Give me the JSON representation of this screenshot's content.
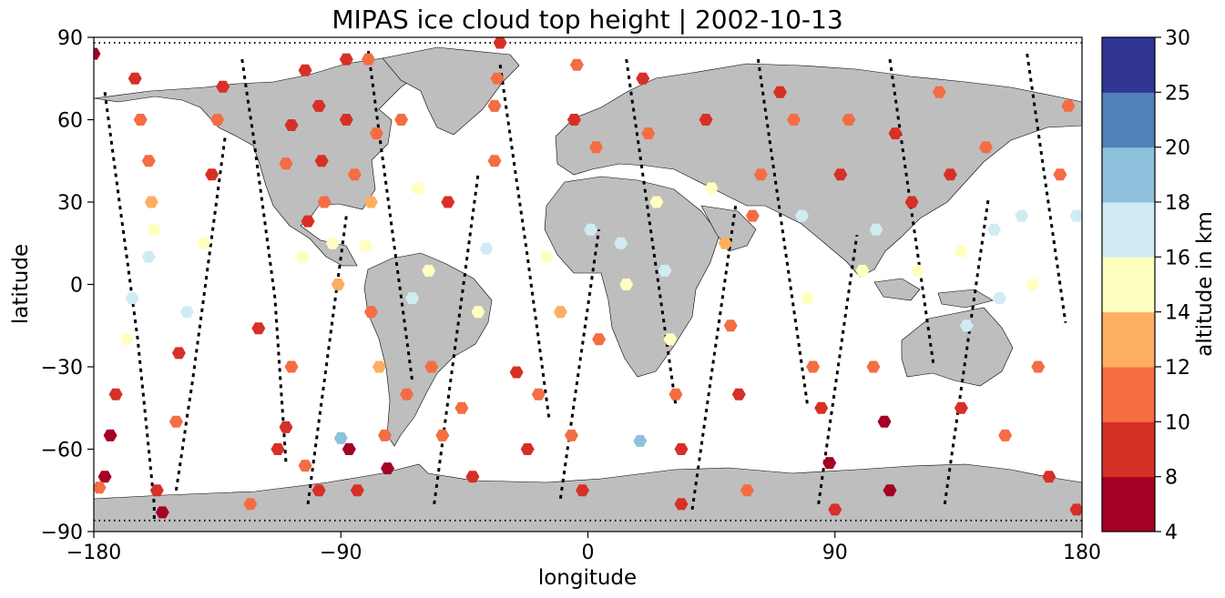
{
  "chart_data": {
    "type": "scatter",
    "title": "MIPAS ice cloud top height | 2002-10-13",
    "xlabel": "longitude",
    "ylabel": "latitude",
    "xlim": [
      -180,
      180
    ],
    "ylim": [
      -90,
      90
    ],
    "xticks": [
      "−180",
      "−90",
      "0",
      "90",
      "180"
    ],
    "yticks": [
      "90",
      "60",
      "30",
      "0",
      "−30",
      "−60",
      "−90"
    ],
    "xtick_values": [
      -180,
      -90,
      0,
      90,
      180
    ],
    "ytick_values": [
      90,
      60,
      30,
      0,
      -30,
      -60,
      -90
    ],
    "colorbar": {
      "label": "altitude in km",
      "bounds": [
        4,
        8,
        10,
        12,
        14,
        16,
        18,
        20,
        25,
        30
      ],
      "tick_labels": [
        "4",
        "8",
        "10",
        "12",
        "14",
        "16",
        "18",
        "20",
        "25",
        "30"
      ],
      "colors": [
        "#a50026",
        "#d73027",
        "#f46d43",
        "#fdae61",
        "#ffffbf",
        "#d1ebf3",
        "#8ec1dc",
        "#4f82b8",
        "#313695"
      ]
    },
    "land_color": "#bebebe",
    "orbit_tracks": [
      {
        "lon": [
          -176,
          -174,
          -172,
          -170,
          -168,
          -166,
          -164,
          -163,
          -162,
          -161,
          -160,
          -159,
          -158,
          -158
        ],
        "lat": [
          70,
          55,
          40,
          25,
          10,
          -5,
          -20,
          -30,
          -40,
          -50,
          -60,
          -70,
          -80,
          -86
        ]
      },
      {
        "lon": [
          -150,
          -148,
          -146,
          -144,
          -142,
          -140,
          -138,
          -136,
          -134,
          -132
        ],
        "lat": [
          -75,
          -62,
          -48,
          -35,
          -20,
          -5,
          10,
          25,
          40,
          55
        ]
      },
      {
        "lon": [
          -126,
          -124,
          -122,
          -120,
          -118,
          -116,
          -114,
          -113,
          -112,
          -111,
          -110
        ],
        "lat": [
          82,
          68,
          55,
          40,
          25,
          10,
          -5,
          -20,
          -35,
          -50,
          -65
        ]
      },
      {
        "lon": [
          -102,
          -100,
          -98,
          -96,
          -94,
          -92,
          -90,
          -88
        ],
        "lat": [
          -80,
          -65,
          -50,
          -35,
          -20,
          -5,
          10,
          25
        ]
      },
      {
        "lon": [
          -80,
          -78,
          -76,
          -74,
          -72,
          -70,
          -68,
          -66,
          -64
        ],
        "lat": [
          85,
          70,
          55,
          40,
          25,
          10,
          -5,
          -20,
          -35
        ]
      },
      {
        "lon": [
          -56,
          -54,
          -52,
          -50,
          -48,
          -46,
          -44,
          -42,
          -40
        ],
        "lat": [
          -80,
          -65,
          -50,
          -35,
          -20,
          -5,
          10,
          25,
          40
        ]
      },
      {
        "lon": [
          -32,
          -30,
          -28,
          -26,
          -24,
          -22,
          -20,
          -18,
          -16,
          -14
        ],
        "lat": [
          80,
          66,
          52,
          38,
          24,
          10,
          -5,
          -20,
          -35,
          -50
        ]
      },
      {
        "lon": [
          -10,
          -8,
          -6,
          -4,
          -2,
          0,
          2,
          4
        ],
        "lat": [
          -78,
          -64,
          -50,
          -36,
          -22,
          -8,
          6,
          20
        ]
      },
      {
        "lon": [
          14,
          16,
          18,
          20,
          22,
          24,
          26,
          28,
          30,
          32
        ],
        "lat": [
          82,
          68,
          54,
          40,
          26,
          12,
          -2,
          -16,
          -30,
          -44
        ]
      },
      {
        "lon": [
          38,
          40,
          42,
          44,
          46,
          48,
          50,
          52,
          54
        ],
        "lat": [
          -82,
          -68,
          -54,
          -40,
          -26,
          -12,
          2,
          16,
          30
        ]
      },
      {
        "lon": [
          62,
          64,
          66,
          68,
          70,
          72,
          74,
          76,
          78,
          80
        ],
        "lat": [
          82,
          68,
          54,
          40,
          26,
          12,
          -2,
          -16,
          -30,
          -44
        ]
      },
      {
        "lon": [
          84,
          86,
          88,
          90,
          92,
          94,
          96,
          98
        ],
        "lat": [
          -80,
          -66,
          -52,
          -38,
          -24,
          -10,
          4,
          18
        ]
      },
      {
        "lon": [
          110,
          112,
          114,
          116,
          118,
          120,
          122,
          124,
          126
        ],
        "lat": [
          82,
          68,
          54,
          40,
          26,
          12,
          -2,
          -16,
          -30
        ]
      },
      {
        "lon": [
          130,
          132,
          134,
          136,
          138,
          140,
          142,
          144,
          146
        ],
        "lat": [
          -80,
          -66,
          -52,
          -38,
          -24,
          -10,
          4,
          18,
          32
        ]
      },
      {
        "lon": [
          160,
          162,
          164,
          166,
          168,
          170,
          172,
          174
        ],
        "lat": [
          84,
          70,
          56,
          42,
          28,
          14,
          0,
          -14
        ]
      }
    ],
    "cloud_points": [
      {
        "lon": -180,
        "lat": 84,
        "h": 6
      },
      {
        "lon": -165,
        "lat": 75,
        "h": 9
      },
      {
        "lon": -163,
        "lat": 60,
        "h": 11
      },
      {
        "lon": -160,
        "lat": 45,
        "h": 10
      },
      {
        "lon": -159,
        "lat": 30,
        "h": 12
      },
      {
        "lon": -158,
        "lat": 20,
        "h": 15
      },
      {
        "lon": -160,
        "lat": 10,
        "h": 16
      },
      {
        "lon": -166,
        "lat": -5,
        "h": 17
      },
      {
        "lon": -168,
        "lat": -20,
        "h": 15
      },
      {
        "lon": -172,
        "lat": -40,
        "h": 8
      },
      {
        "lon": -174,
        "lat": -55,
        "h": 6
      },
      {
        "lon": -176,
        "lat": -70,
        "h": 7
      },
      {
        "lon": -178,
        "lat": -74,
        "h": 11
      },
      {
        "lon": -157,
        "lat": -75,
        "h": 9
      },
      {
        "lon": -155,
        "lat": -83,
        "h": 6
      },
      {
        "lon": -150,
        "lat": -50,
        "h": 11
      },
      {
        "lon": -149,
        "lat": -25,
        "h": 9
      },
      {
        "lon": -146,
        "lat": -10,
        "h": 17
      },
      {
        "lon": -140,
        "lat": 15,
        "h": 14
      },
      {
        "lon": -137,
        "lat": 40,
        "h": 9
      },
      {
        "lon": -135,
        "lat": 60,
        "h": 10
      },
      {
        "lon": -133,
        "lat": 72,
        "h": 9
      },
      {
        "lon": -123,
        "lat": -80,
        "h": 10
      },
      {
        "lon": -120,
        "lat": -16,
        "h": 9
      },
      {
        "lon": -113,
        "lat": -60,
        "h": 9
      },
      {
        "lon": -110,
        "lat": -52,
        "h": 9
      },
      {
        "lon": -103,
        "lat": -66,
        "h": 11
      },
      {
        "lon": -108,
        "lat": -30,
        "h": 11
      },
      {
        "lon": -104,
        "lat": 10,
        "h": 15
      },
      {
        "lon": -102,
        "lat": 23,
        "h": 9
      },
      {
        "lon": -110,
        "lat": 44,
        "h": 11
      },
      {
        "lon": -108,
        "lat": 58,
        "h": 9
      },
      {
        "lon": -103,
        "lat": 78,
        "h": 9
      },
      {
        "lon": -98,
        "lat": 65,
        "h": 9
      },
      {
        "lon": -97,
        "lat": 45,
        "h": 9
      },
      {
        "lon": -96,
        "lat": 30,
        "h": 11
      },
      {
        "lon": -93,
        "lat": 15,
        "h": 15
      },
      {
        "lon": -91,
        "lat": 0,
        "h": 13
      },
      {
        "lon": -90,
        "lat": -56,
        "h": 19
      },
      {
        "lon": -98,
        "lat": -75,
        "h": 9
      },
      {
        "lon": -87,
        "lat": -60,
        "h": 6
      },
      {
        "lon": -84,
        "lat": -75,
        "h": 9
      },
      {
        "lon": -85,
        "lat": 40,
        "h": 10
      },
      {
        "lon": -88,
        "lat": 60,
        "h": 9
      },
      {
        "lon": -88,
        "lat": 82,
        "h": 8
      },
      {
        "lon": -80,
        "lat": 82,
        "h": 11
      },
      {
        "lon": -77,
        "lat": 55,
        "h": 11
      },
      {
        "lon": -79,
        "lat": 30,
        "h": 12
      },
      {
        "lon": -81,
        "lat": 14,
        "h": 15
      },
      {
        "lon": -79,
        "lat": -10,
        "h": 10
      },
      {
        "lon": -76,
        "lat": -30,
        "h": 13
      },
      {
        "lon": -74,
        "lat": -55,
        "h": 10
      },
      {
        "lon": -73,
        "lat": -67,
        "h": 7
      },
      {
        "lon": -68,
        "lat": 60,
        "h": 11
      },
      {
        "lon": -62,
        "lat": 35,
        "h": 14
      },
      {
        "lon": -58,
        "lat": 5,
        "h": 15
      },
      {
        "lon": -64,
        "lat": -5,
        "h": 16
      },
      {
        "lon": -66,
        "lat": -40,
        "h": 11
      },
      {
        "lon": -57,
        "lat": -30,
        "h": 11
      },
      {
        "lon": -53,
        "lat": -55,
        "h": 11
      },
      {
        "lon": -51,
        "lat": 30,
        "h": 9
      },
      {
        "lon": -46,
        "lat": -45,
        "h": 11
      },
      {
        "lon": -42,
        "lat": -70,
        "h": 9
      },
      {
        "lon": -40,
        "lat": -10,
        "h": 14
      },
      {
        "lon": -37,
        "lat": 13,
        "h": 17
      },
      {
        "lon": -34,
        "lat": 45,
        "h": 10
      },
      {
        "lon": -34,
        "lat": 65,
        "h": 10
      },
      {
        "lon": -33,
        "lat": 75,
        "h": 11
      },
      {
        "lon": -32,
        "lat": 88,
        "h": 9
      },
      {
        "lon": -26,
        "lat": -32,
        "h": 8
      },
      {
        "lon": -18,
        "lat": -40,
        "h": 11
      },
      {
        "lon": -22,
        "lat": -60,
        "h": 9
      },
      {
        "lon": -15,
        "lat": 10,
        "h": 15
      },
      {
        "lon": -10,
        "lat": -10,
        "h": 13
      },
      {
        "lon": -5,
        "lat": 60,
        "h": 9
      },
      {
        "lon": -4,
        "lat": 80,
        "h": 10
      },
      {
        "lon": 3,
        "lat": 50,
        "h": 10
      },
      {
        "lon": 1,
        "lat": 20,
        "h": 16
      },
      {
        "lon": 4,
        "lat": -20,
        "h": 11
      },
      {
        "lon": -6,
        "lat": -55,
        "h": 10
      },
      {
        "lon": -2,
        "lat": -75,
        "h": 9
      },
      {
        "lon": 12,
        "lat": 15,
        "h": 17
      },
      {
        "lon": 14,
        "lat": 0,
        "h": 15
      },
      {
        "lon": 19,
        "lat": -57,
        "h": 19
      },
      {
        "lon": 20,
        "lat": 75,
        "h": 9
      },
      {
        "lon": 22,
        "lat": 55,
        "h": 10
      },
      {
        "lon": 25,
        "lat": 30,
        "h": 15
      },
      {
        "lon": 28,
        "lat": 5,
        "h": 17
      },
      {
        "lon": 30,
        "lat": -20,
        "h": 14
      },
      {
        "lon": 32,
        "lat": -40,
        "h": 11
      },
      {
        "lon": 34,
        "lat": -60,
        "h": 9
      },
      {
        "lon": 34,
        "lat": -80,
        "h": 9
      },
      {
        "lon": 43,
        "lat": 60,
        "h": 9
      },
      {
        "lon": 45,
        "lat": 35,
        "h": 15
      },
      {
        "lon": 50,
        "lat": 15,
        "h": 13
      },
      {
        "lon": 52,
        "lat": -15,
        "h": 11
      },
      {
        "lon": 55,
        "lat": -40,
        "h": 8
      },
      {
        "lon": 58,
        "lat": -75,
        "h": 10
      },
      {
        "lon": 60,
        "lat": 25,
        "h": 10
      },
      {
        "lon": 63,
        "lat": 40,
        "h": 11
      },
      {
        "lon": 70,
        "lat": 70,
        "h": 9
      },
      {
        "lon": 75,
        "lat": 60,
        "h": 10
      },
      {
        "lon": 78,
        "lat": 25,
        "h": 17
      },
      {
        "lon": 80,
        "lat": -5,
        "h": 15
      },
      {
        "lon": 82,
        "lat": -30,
        "h": 11
      },
      {
        "lon": 85,
        "lat": -45,
        "h": 9
      },
      {
        "lon": 88,
        "lat": -65,
        "h": 7
      },
      {
        "lon": 90,
        "lat": -82,
        "h": 9
      },
      {
        "lon": 92,
        "lat": 40,
        "h": 9
      },
      {
        "lon": 95,
        "lat": 60,
        "h": 11
      },
      {
        "lon": 100,
        "lat": 5,
        "h": 15
      },
      {
        "lon": 105,
        "lat": 20,
        "h": 17
      },
      {
        "lon": 104,
        "lat": -30,
        "h": 11
      },
      {
        "lon": 108,
        "lat": -50,
        "h": 7
      },
      {
        "lon": 110,
        "lat": -75,
        "h": 7
      },
      {
        "lon": 112,
        "lat": 55,
        "h": 9
      },
      {
        "lon": 118,
        "lat": 30,
        "h": 9
      },
      {
        "lon": 120,
        "lat": 5,
        "h": 15
      },
      {
        "lon": 128,
        "lat": 70,
        "h": 10
      },
      {
        "lon": 132,
        "lat": 40,
        "h": 9
      },
      {
        "lon": 136,
        "lat": 12,
        "h": 15
      },
      {
        "lon": 138,
        "lat": -15,
        "h": 17
      },
      {
        "lon": 136,
        "lat": -45,
        "h": 9
      },
      {
        "lon": 145,
        "lat": 50,
        "h": 10
      },
      {
        "lon": 148,
        "lat": 20,
        "h": 17
      },
      {
        "lon": 150,
        "lat": -5,
        "h": 17
      },
      {
        "lon": 152,
        "lat": -55,
        "h": 11
      },
      {
        "lon": 158,
        "lat": 25,
        "h": 17
      },
      {
        "lon": 162,
        "lat": 0,
        "h": 15
      },
      {
        "lon": 164,
        "lat": -30,
        "h": 11
      },
      {
        "lon": 168,
        "lat": -70,
        "h": 9
      },
      {
        "lon": 172,
        "lat": 40,
        "h": 11
      },
      {
        "lon": 175,
        "lat": 65,
        "h": 10
      },
      {
        "lon": 178,
        "lat": 25,
        "h": 17
      },
      {
        "lon": 178,
        "lat": -82,
        "h": 8
      }
    ]
  }
}
